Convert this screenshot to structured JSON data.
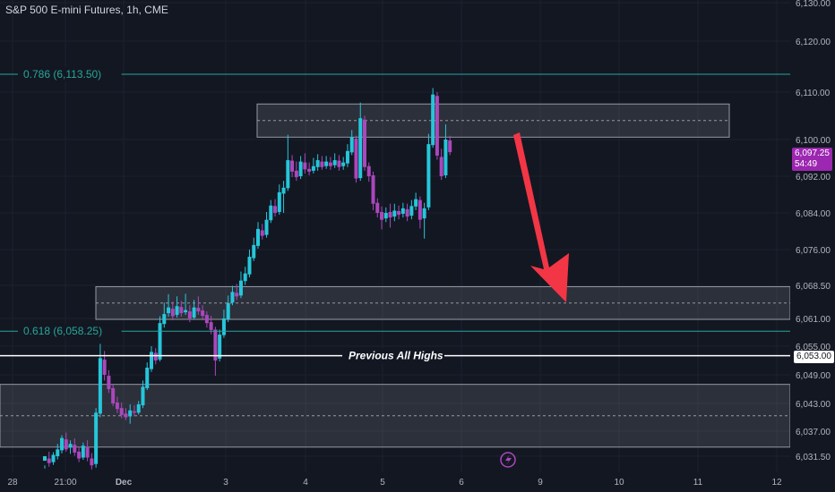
{
  "header": {
    "title": "S&P 500 E-mini Futures, 1h, CME"
  },
  "colors": {
    "background": "#131722",
    "grid": "#1e222d",
    "bull": "#26c6da",
    "bear": "#ab47bc",
    "fib": "#26a69a",
    "arrow": "#f23645",
    "current_price_bg": "#9c27b0"
  },
  "chart_data": {
    "type": "candlestick",
    "title": "S&P 500 E-mini Futures, 1h, CME",
    "y_axis": {
      "ticks": [
        "6,130.00",
        "6,120.00",
        "6,110.00",
        "6,100.00",
        "6,092.00",
        "6,084.00",
        "6,076.00",
        "6,068.50",
        "6,061.00",
        "6,055.00",
        "6,049.00",
        "6,043.00",
        "6,037.00",
        "6,031.50"
      ]
    },
    "x_axis": {
      "ticks": [
        "28",
        "21:00",
        "Dec",
        "3",
        "4",
        "5",
        "6",
        "9",
        "10",
        "11",
        "12"
      ]
    },
    "fib_levels": [
      {
        "label": "0.786 (6,113.50)",
        "price": 6113.5
      },
      {
        "label": "0.618 (6,058.25)",
        "price": 6058.25
      }
    ],
    "horizontal_line": {
      "label": "Previous All Highs",
      "price": 6053.0,
      "tag": "6,053.00"
    },
    "zones": [
      {
        "top": 6107.5,
        "bottom": 6100.5
      },
      {
        "top": 6068.2,
        "bottom": 6060.8
      },
      {
        "top": 6047.0,
        "bottom": 6033.5
      }
    ],
    "current_price": {
      "price": 6097.25,
      "label": "6,097.25",
      "countdown": "54:49"
    },
    "candles": [
      [
        6030.5,
        6031.5,
        6029.5,
        6028.8
      ],
      [
        6031.0,
        6030.0,
        6032.5,
        6029.2
      ],
      [
        6030.2,
        6031.8,
        6032.4,
        6029.6
      ],
      [
        6031.5,
        6033.0,
        6034.2,
        6030.8
      ],
      [
        6032.8,
        6035.5,
        6036.1,
        6032.1
      ],
      [
        6035.2,
        6033.0,
        6036.7,
        6032.5
      ],
      [
        6033.4,
        6034.2,
        6035.0,
        6032.0
      ],
      [
        6034.0,
        6032.3,
        6035.4,
        6031.6
      ],
      [
        6032.5,
        6031.0,
        6033.6,
        6030.2
      ],
      [
        6031.2,
        6033.8,
        6034.5,
        6030.7
      ],
      [
        6033.5,
        6031.2,
        6035.0,
        6030.4
      ],
      [
        6031.0,
        6029.5,
        6032.2,
        6028.6
      ],
      [
        6029.8,
        6041.0,
        6042.0,
        6029.0
      ],
      [
        6040.8,
        6052.5,
        6055.5,
        6040.0
      ],
      [
        6052.2,
        6049.0,
        6054.0,
        6047.8
      ],
      [
        6048.8,
        6046.0,
        6050.0,
        6045.2
      ],
      [
        6046.2,
        6043.0,
        6047.0,
        6042.4
      ],
      [
        6043.2,
        6041.8,
        6044.4,
        6040.9
      ],
      [
        6042.0,
        6040.5,
        6043.2,
        6039.8
      ],
      [
        6040.8,
        6040.0,
        6042.0,
        6039.4
      ],
      [
        6040.2,
        6041.5,
        6042.8,
        6038.6
      ],
      [
        6041.3,
        6041.0,
        6042.6,
        6040.2
      ],
      [
        6041.0,
        6042.8,
        6043.5,
        6040.6
      ],
      [
        6042.6,
        6046.5,
        6047.8,
        6042.0
      ],
      [
        6046.2,
        6050.5,
        6051.6,
        6045.8
      ],
      [
        6050.2,
        6053.8,
        6055.0,
        6049.6
      ],
      [
        6053.6,
        6052.0,
        6054.6,
        6051.2
      ],
      [
        6052.2,
        6060.0,
        6061.5,
        6051.8
      ],
      [
        6059.8,
        6062.0,
        6064.6,
        6059.0
      ],
      [
        6062.2,
        6063.5,
        6066.5,
        6061.4
      ],
      [
        6063.2,
        6061.5,
        6064.8,
        6060.6
      ],
      [
        6061.8,
        6063.8,
        6066.0,
        6061.2
      ],
      [
        6063.6,
        6062.2,
        6065.0,
        6061.4
      ],
      [
        6062.4,
        6062.9,
        6066.6,
        6061.8
      ],
      [
        6062.6,
        6061.0,
        6064.0,
        6060.2
      ],
      [
        6061.2,
        6063.5,
        6065.2,
        6060.8
      ],
      [
        6063.4,
        6062.6,
        6066.0,
        6061.8
      ],
      [
        6062.8,
        6061.6,
        6064.0,
        6060.6
      ],
      [
        6061.8,
        6060.0,
        6062.6,
        6059.0
      ],
      [
        6060.2,
        6058.5,
        6061.6,
        6057.6
      ],
      [
        6058.6,
        6052.0,
        6059.2,
        6048.8
      ],
      [
        6052.4,
        6057.5,
        6058.6,
        6051.8
      ],
      [
        6057.4,
        6061.0,
        6063.0,
        6056.8
      ],
      [
        6060.8,
        6064.5,
        6066.2,
        6060.2
      ],
      [
        6064.6,
        6067.0,
        6068.4,
        6064.0
      ],
      [
        6066.8,
        6066.0,
        6068.8,
        6065.2
      ],
      [
        6066.2,
        6069.5,
        6071.4,
        6065.6
      ],
      [
        6069.4,
        6071.0,
        6072.4,
        6068.6
      ],
      [
        6070.8,
        6074.5,
        6076.0,
        6070.2
      ],
      [
        6074.2,
        6077.0,
        6078.6,
        6073.6
      ],
      [
        6076.8,
        6080.5,
        6082.0,
        6076.2
      ],
      [
        6080.2,
        6079.0,
        6081.6,
        6078.2
      ],
      [
        6079.2,
        6082.5,
        6084.2,
        6078.6
      ],
      [
        6082.4,
        6085.6,
        6086.8,
        6081.8
      ],
      [
        6085.5,
        6084.0,
        6087.0,
        6083.2
      ],
      [
        6084.2,
        6088.5,
        6090.2,
        6083.6
      ],
      [
        6088.2,
        6089.5,
        6091.0,
        6084.0
      ],
      [
        6089.4,
        6095.5,
        6101.0,
        6088.8
      ],
      [
        6095.4,
        6093.0,
        6096.6,
        6091.8
      ],
      [
        6093.2,
        6091.8,
        6095.2,
        6091.0
      ],
      [
        6092.0,
        6095.2,
        6096.4,
        6091.4
      ],
      [
        6095.0,
        6093.5,
        6097.0,
        6092.6
      ],
      [
        6093.6,
        6093.0,
        6095.0,
        6092.2
      ],
      [
        6093.2,
        6094.2,
        6096.0,
        6092.6
      ],
      [
        6094.0,
        6095.5,
        6096.8,
        6093.2
      ],
      [
        6095.2,
        6094.0,
        6096.4,
        6093.4
      ],
      [
        6094.2,
        6095.2,
        6096.4,
        6093.6
      ],
      [
        6095.0,
        6094.2,
        6096.2,
        6093.4
      ],
      [
        6094.4,
        6095.5,
        6097.0,
        6093.8
      ],
      [
        6095.4,
        6094.0,
        6096.6,
        6093.2
      ],
      [
        6094.2,
        6095.0,
        6096.2,
        6093.4
      ],
      [
        6094.8,
        6097.5,
        6099.0,
        6094.0
      ],
      [
        6097.2,
        6100.5,
        6102.0,
        6096.6
      ],
      [
        6100.2,
        6091.5,
        6100.8,
        6090.6
      ],
      [
        6091.6,
        6104.5,
        6107.8,
        6091.0
      ],
      [
        6104.2,
        6094.0,
        6105.0,
        6093.2
      ],
      [
        6094.2,
        6092.0,
        6095.0,
        6090.8
      ],
      [
        6092.2,
        6086.0,
        6093.0,
        6084.6
      ],
      [
        6086.2,
        6084.0,
        6087.2,
        6083.0
      ],
      [
        6084.2,
        6082.5,
        6085.4,
        6080.4
      ],
      [
        6082.8,
        6084.0,
        6085.2,
        6082.0
      ],
      [
        6084.2,
        6083.0,
        6086.0,
        6080.8
      ],
      [
        6083.2,
        6084.5,
        6086.0,
        6082.2
      ],
      [
        6084.4,
        6083.6,
        6085.6,
        6082.6
      ],
      [
        6083.8,
        6085.0,
        6086.2,
        6083.0
      ],
      [
        6084.8,
        6083.2,
        6086.0,
        6082.2
      ],
      [
        6083.4,
        6085.5,
        6086.8,
        6082.6
      ],
      [
        6085.4,
        6087.0,
        6088.4,
        6084.6
      ],
      [
        6086.8,
        6082.5,
        6087.6,
        6080.6
      ],
      [
        6082.8,
        6085.0,
        6086.2,
        6078.4
      ],
      [
        6085.2,
        6099.0,
        6101.2,
        6084.6
      ],
      [
        6098.8,
        6109.5,
        6110.8,
        6098.2
      ],
      [
        6109.2,
        6096.5,
        6110.0,
        6095.6
      ],
      [
        6096.2,
        6092.0,
        6098.0,
        6091.2
      ],
      [
        6092.2,
        6100.0,
        6103.2,
        6091.6
      ],
      [
        6099.8,
        6097.25,
        6100.8,
        6096.6
      ]
    ]
  },
  "annotations": {
    "arrow": "down"
  }
}
